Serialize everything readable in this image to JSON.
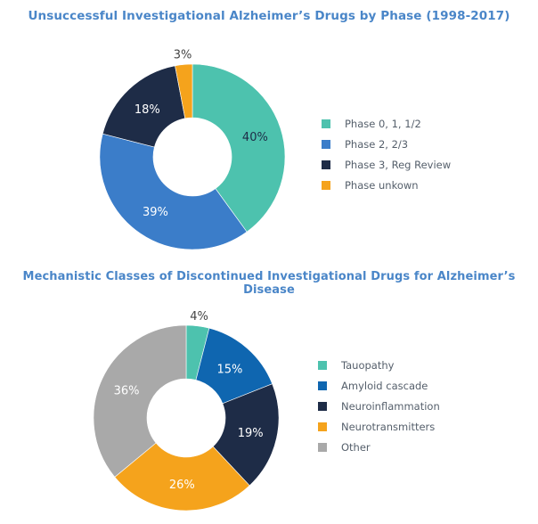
{
  "chart_data": [
    {
      "type": "pie",
      "title": "Unsuccessful Investigational Alzheimer’s Drugs by Phase (1998-2017)",
      "donut": true,
      "categories": [
        "Phase 0, 1, 1/2",
        "Phase 2, 2/3",
        "Phase 3, Reg Review",
        "Phase unkown"
      ],
      "values": [
        40,
        39,
        18,
        3
      ],
      "labels": [
        "40%",
        "39%",
        "18%",
        "3%"
      ],
      "colors": [
        "#4dc2ae",
        "#3b7dc9",
        "#1e2c47",
        "#f5a31c"
      ],
      "label_colors": [
        "#1e2c47",
        "#ffffff",
        "#ffffff",
        "#444444"
      ],
      "legend": "right"
    },
    {
      "type": "pie",
      "title": "Mechanistic Classes of Discontinued Investigational Drugs for Alzheimer’s Disease",
      "donut": true,
      "categories": [
        "Tauopathy",
        "Amyloid cascade",
        "Neuroinflammation",
        "Neurotransmitters",
        "Other"
      ],
      "values": [
        4,
        15,
        19,
        26,
        36
      ],
      "labels": [
        "4%",
        "15%",
        "19%",
        "26%",
        "36%"
      ],
      "colors": [
        "#4dc2ae",
        "#0f66b0",
        "#1e2c47",
        "#f5a31c",
        "#a9a9a9"
      ],
      "label_colors": [
        "#444444",
        "#ffffff",
        "#ffffff",
        "#ffffff",
        "#ffffff"
      ],
      "legend": "right"
    }
  ]
}
